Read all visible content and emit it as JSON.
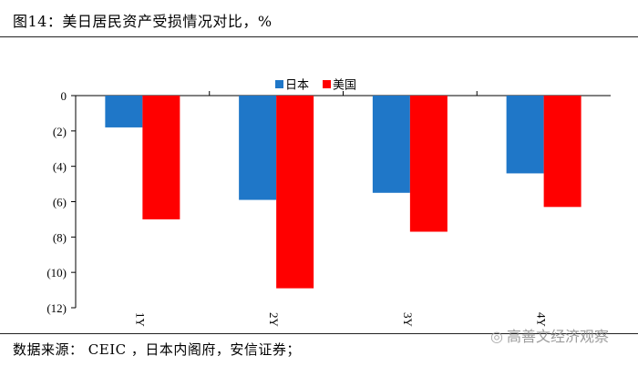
{
  "title": "图14：美日居民资产受损情况对比，%",
  "source": "数据来源： CEIC ，日本内阁府，安信证券；",
  "watermark": "高善文经济观察",
  "chart_data": {
    "type": "bar",
    "categories": [
      "1Y",
      "2Y",
      "3Y",
      "4Y"
    ],
    "series": [
      {
        "name": "日本",
        "color": "#1f77c8",
        "values": [
          -1.8,
          -5.9,
          -5.5,
          -4.4
        ]
      },
      {
        "name": "美国",
        "color": "#ff0000",
        "values": [
          -7.0,
          -10.9,
          -7.7,
          -6.3
        ]
      }
    ],
    "ylim": [
      -12,
      0
    ],
    "yticks": [
      0,
      -2,
      -4,
      -6,
      -8,
      -10,
      -12
    ],
    "ytick_labels": [
      "0",
      "(2)",
      "(4)",
      "(6)",
      "(8)",
      "(10)",
      "(12)"
    ],
    "legend_position": "top-center",
    "grid": false
  }
}
